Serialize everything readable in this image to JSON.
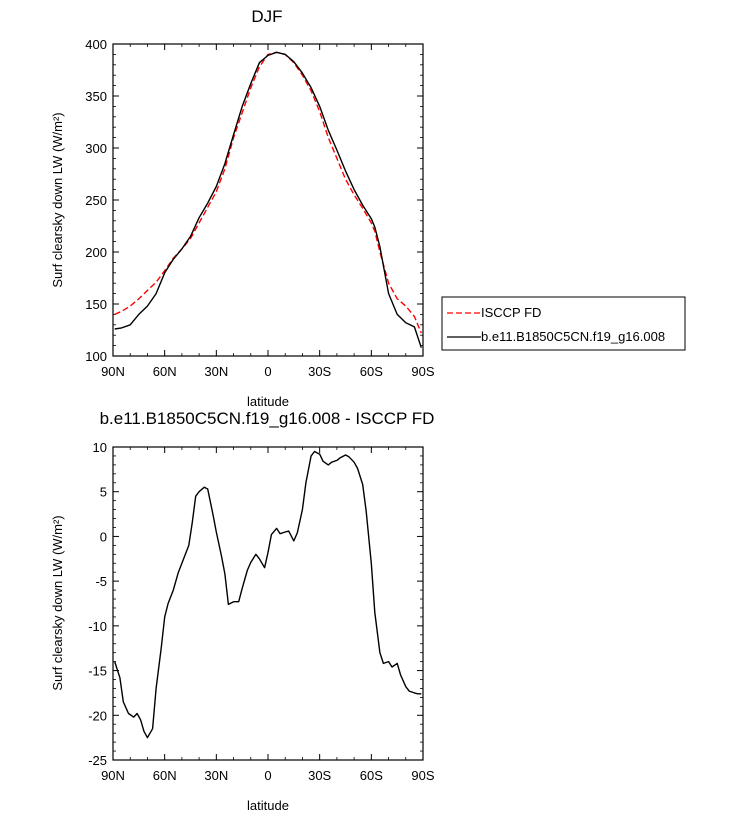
{
  "chart_data": [
    {
      "type": "line",
      "title": "DJF",
      "xlabel": "latitude",
      "ylabel": "Surf clearsky down LW (W/m²)",
      "xlim": [
        90,
        -90
      ],
      "ylim": [
        100,
        400
      ],
      "x_ticks": [
        90,
        60,
        30,
        0,
        -30,
        -60,
        -90
      ],
      "x_tick_labels": [
        "90N",
        "60N",
        "30N",
        "0",
        "30S",
        "60S",
        "90S"
      ],
      "y_ticks": [
        100,
        150,
        200,
        250,
        300,
        350,
        400
      ],
      "y_tick_labels": [
        "100",
        "150",
        "200",
        "250",
        "300",
        "350",
        "400"
      ],
      "legend_position": "right",
      "series": [
        {
          "name": "ISCCP FD",
          "color": "#ff0000",
          "style": "dashed",
          "x": [
            89,
            85,
            80,
            75,
            70,
            65,
            60,
            55,
            50,
            45,
            40,
            35,
            30,
            25,
            20,
            15,
            10,
            5,
            0,
            -5,
            -10,
            -15,
            -20,
            -25,
            -30,
            -35,
            -40,
            -45,
            -50,
            -55,
            -60,
            -62,
            -65,
            -70,
            -75,
            -80,
            -85,
            -89
          ],
          "y": [
            140,
            143,
            148,
            155,
            163,
            171,
            182,
            194,
            203,
            213,
            228,
            243,
            258,
            280,
            310,
            334,
            358,
            378,
            390,
            392,
            390,
            382,
            370,
            355,
            335,
            310,
            290,
            270,
            255,
            242,
            228,
            220,
            200,
            170,
            155,
            148,
            138,
            122
          ]
        },
        {
          "name": "b.e11.B1850C5CN.f19_g16.008",
          "color": "#000000",
          "style": "solid",
          "x": [
            89,
            85,
            80,
            75,
            70,
            65,
            60,
            55,
            50,
            45,
            40,
            35,
            30,
            25,
            20,
            15,
            10,
            5,
            0,
            -5,
            -10,
            -15,
            -20,
            -25,
            -30,
            -35,
            -40,
            -45,
            -50,
            -55,
            -60,
            -62,
            -65,
            -70,
            -75,
            -80,
            -85,
            -89
          ],
          "y": [
            126,
            127,
            130,
            140,
            148,
            160,
            180,
            193,
            203,
            215,
            233,
            247,
            263,
            285,
            313,
            340,
            362,
            382,
            389,
            392,
            390,
            383,
            372,
            358,
            340,
            317,
            298,
            278,
            260,
            245,
            232,
            224,
            205,
            160,
            140,
            132,
            128,
            108
          ]
        }
      ]
    },
    {
      "type": "line",
      "title": "b.e11.B1850C5CN.f19_g16.008 - ISCCP FD",
      "xlabel": "latitude",
      "ylabel": "Surf clearsky down LW (W/m²)",
      "xlim": [
        90,
        -90
      ],
      "ylim": [
        -25,
        10
      ],
      "x_ticks": [
        90,
        60,
        30,
        0,
        -30,
        -60,
        -90
      ],
      "x_tick_labels": [
        "90N",
        "60N",
        "30N",
        "0",
        "30S",
        "60S",
        "90S"
      ],
      "y_ticks": [
        -25,
        -20,
        -15,
        -10,
        -5,
        0,
        5,
        10
      ],
      "y_tick_labels": [
        "-25",
        "-20",
        "-15",
        "-10",
        "-5",
        "0",
        "5",
        "10"
      ],
      "series": [
        {
          "color": "#000000",
          "style": "solid",
          "x": [
            89,
            86,
            84,
            81,
            78,
            76,
            74,
            72,
            70,
            67,
            65,
            62,
            60,
            58,
            55,
            52,
            50,
            46,
            44,
            42,
            40,
            37,
            35,
            32,
            30,
            27,
            25,
            23,
            20,
            17,
            15,
            12,
            10,
            7,
            5,
            2,
            0,
            -2,
            -5,
            -7,
            -10,
            -12,
            -15,
            -17,
            -20,
            -22,
            -25,
            -27,
            -30,
            -32,
            -35,
            -37,
            -40,
            -42,
            -45,
            -47,
            -50,
            -52,
            -55,
            -57,
            -60,
            -62,
            -65,
            -67,
            -70,
            -72,
            -75,
            -77,
            -80,
            -82,
            -85,
            -87,
            -89
          ],
          "y": [
            -14,
            -15.8,
            -18.5,
            -19.8,
            -20.2,
            -19.8,
            -20.5,
            -21.8,
            -22.5,
            -21.5,
            -17,
            -12.5,
            -9,
            -7.5,
            -6,
            -4,
            -3,
            -1,
            1.5,
            4.5,
            5,
            5.5,
            5.3,
            2.5,
            0.5,
            -2.2,
            -4.2,
            -7.6,
            -7.3,
            -7.3,
            -5.8,
            -3.8,
            -2.9,
            -2,
            -2.5,
            -3.5,
            -1.8,
            0.2,
            0.9,
            0.3,
            0.5,
            0.6,
            -0.5,
            0.4,
            3,
            6,
            9,
            9.5,
            9.2,
            8.4,
            8,
            8.3,
            8.5,
            8.8,
            9.1,
            8.9,
            8.3,
            7.6,
            5.8,
            2.8,
            -3,
            -8.5,
            -13,
            -14.2,
            -14,
            -14.6,
            -14.2,
            -15.5,
            -16.8,
            -17.3,
            -17.5,
            -17.6,
            -17.6
          ]
        }
      ]
    }
  ]
}
